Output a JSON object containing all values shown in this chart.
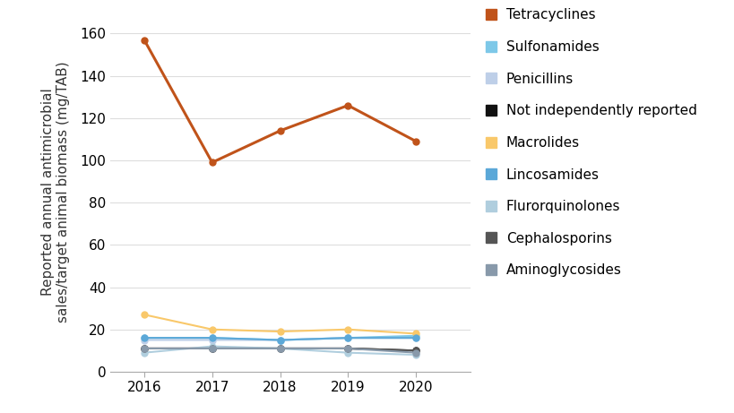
{
  "years": [
    2016,
    2017,
    2018,
    2019,
    2020
  ],
  "series": [
    {
      "label": "Tetracyclines",
      "values": [
        157,
        99,
        114,
        126,
        109
      ],
      "color": "#C0531A",
      "marker": "o",
      "linewidth": 2.2,
      "zorder": 5
    },
    {
      "label": "Sulfonamides",
      "values": [
        16,
        16,
        15,
        16,
        17
      ],
      "color": "#7DC8E8",
      "marker": "o",
      "linewidth": 1.5,
      "zorder": 4
    },
    {
      "label": "Penicillins",
      "values": [
        15,
        15,
        15,
        16,
        16
      ],
      "color": "#BECFE8",
      "marker": "o",
      "linewidth": 1.5,
      "zorder": 4
    },
    {
      "label": "Not independently reported",
      "values": [
        11,
        11,
        11,
        11,
        10
      ],
      "color": "#111111",
      "marker": "o",
      "linewidth": 1.5,
      "zorder": 4
    },
    {
      "label": "Macrolides",
      "values": [
        27,
        20,
        19,
        20,
        18
      ],
      "color": "#F9C86A",
      "marker": "o",
      "linewidth": 1.5,
      "zorder": 4
    },
    {
      "label": "Lincosamides",
      "values": [
        16,
        16,
        15,
        16,
        16
      ],
      "color": "#5BA8D8",
      "marker": "o",
      "linewidth": 1.5,
      "zorder": 4
    },
    {
      "label": "Flurorquinolones",
      "values": [
        9,
        12,
        11,
        9,
        8
      ],
      "color": "#B0CEDE",
      "marker": "o",
      "linewidth": 1.5,
      "zorder": 4
    },
    {
      "label": "Cephalosporins",
      "values": [
        11,
        11,
        11,
        11,
        10
      ],
      "color": "#555555",
      "marker": "o",
      "linewidth": 1.5,
      "zorder": 4
    },
    {
      "label": "Aminoglycosides",
      "values": [
        11,
        11,
        11,
        11,
        9
      ],
      "color": "#8899AA",
      "marker": "o",
      "linewidth": 1.5,
      "zorder": 4
    }
  ],
  "ylabel": "Reported annual antimicrobial\nsales/target animal biomass (mg/TAB)",
  "ylim": [
    0,
    170
  ],
  "yticks": [
    0,
    20,
    40,
    60,
    80,
    100,
    120,
    140,
    160
  ],
  "xlim": [
    2015.5,
    2020.8
  ],
  "xticks": [
    2016,
    2017,
    2018,
    2019,
    2020
  ],
  "background_color": "#ffffff",
  "grid_color": "#dddddd",
  "axis_fontsize": 11,
  "legend_fontsize": 11
}
